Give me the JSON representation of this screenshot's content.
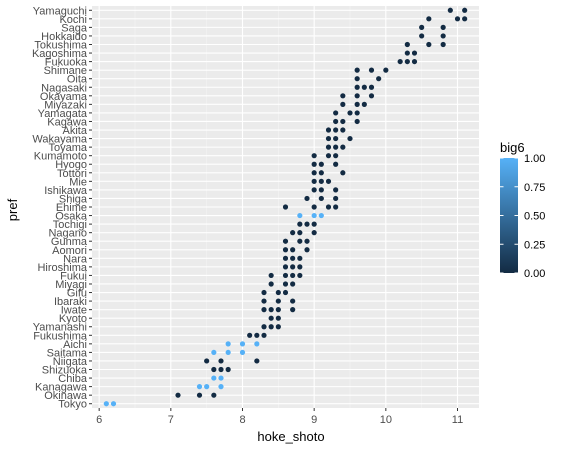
{
  "chart_data": {
    "type": "scatter",
    "xlabel": "hoke_shoto",
    "ylabel": "pref",
    "xlim": [
      5.9,
      11.3
    ],
    "xticks": [
      6,
      7,
      8,
      9,
      10,
      11
    ],
    "xtick_labels": [
      "6",
      "7",
      "8",
      "9",
      "10",
      "11"
    ],
    "grid": true,
    "legend": {
      "title": "big6",
      "position": "right",
      "ticks": [
        1.0,
        0.75,
        0.5,
        0.25,
        0.0
      ],
      "tick_labels": [
        "1.00",
        "0.75",
        "0.50",
        "0.25",
        "0.00"
      ],
      "low_color": "#132B43",
      "high_color": "#56B1F7"
    },
    "categories": [
      "Tokyo",
      "Okinawa",
      "Kanagawa",
      "Chiba",
      "Shizuoka",
      "Niigata",
      "Saitama",
      "Aichi",
      "Fukushima",
      "Yamanashi",
      "Kyoto",
      "Iwate",
      "Ibaraki",
      "Gifu",
      "Miyagi",
      "Fukui",
      "Hiroshima",
      "Nara",
      "Aomori",
      "Gunma",
      "Nagano",
      "Tochigi",
      "Osaka",
      "Ehime",
      "Shiga",
      "Ishikawa",
      "Mie",
      "Tottori",
      "Hyogo",
      "Kumamoto",
      "Toyama",
      "Wakayama",
      "Akita",
      "Kagawa",
      "Yamagata",
      "Miyazaki",
      "Okayama",
      "Nagasaki",
      "Oita",
      "Shimane",
      "Fukuoka",
      "Kagoshima",
      "Tokushima",
      "Hokkaido",
      "Saga",
      "Kochi",
      "Yamaguchi"
    ],
    "points": [
      {
        "pref": "Tokyo",
        "x": [
          6.1,
          6.2
        ],
        "big6": 1
      },
      {
        "pref": "Okinawa",
        "x": [
          7.1,
          7.4,
          7.6
        ],
        "big6": 0
      },
      {
        "pref": "Kanagawa",
        "x": [
          7.4,
          7.5,
          7.7
        ],
        "big6": 1
      },
      {
        "pref": "Chiba",
        "x": [
          7.6,
          7.7
        ],
        "big6": 1
      },
      {
        "pref": "Shizuoka",
        "x": [
          7.6,
          7.7,
          7.8
        ],
        "big6": 0
      },
      {
        "pref": "Niigata",
        "x": [
          7.5,
          7.7,
          8.2
        ],
        "big6": 0
      },
      {
        "pref": "Saitama",
        "x": [
          7.6,
          7.8,
          8.0
        ],
        "big6": 1
      },
      {
        "pref": "Aichi",
        "x": [
          7.8,
          8.0,
          8.2
        ],
        "big6": 1
      },
      {
        "pref": "Fukushima",
        "x": [
          8.1,
          8.2,
          8.3
        ],
        "big6": 0
      },
      {
        "pref": "Yamanashi",
        "x": [
          8.3,
          8.4,
          8.5
        ],
        "big6": 0
      },
      {
        "pref": "Kyoto",
        "x": [
          8.4,
          8.5
        ],
        "big6": 0
      },
      {
        "pref": "Iwate",
        "x": [
          8.3,
          8.4,
          8.5,
          8.7
        ],
        "big6": 0
      },
      {
        "pref": "Ibaraki",
        "x": [
          8.3,
          8.5,
          8.7
        ],
        "big6": 0
      },
      {
        "pref": "Gifu",
        "x": [
          8.3,
          8.5,
          8.6
        ],
        "big6": 0
      },
      {
        "pref": "Miyagi",
        "x": [
          8.4,
          8.6,
          8.7
        ],
        "big6": 0
      },
      {
        "pref": "Fukui",
        "x": [
          8.4,
          8.6,
          8.7,
          8.8
        ],
        "big6": 0
      },
      {
        "pref": "Hiroshima",
        "x": [
          8.6,
          8.7,
          8.8
        ],
        "big6": 0
      },
      {
        "pref": "Nara",
        "x": [
          8.6,
          8.7,
          8.8
        ],
        "big6": 0
      },
      {
        "pref": "Aomori",
        "x": [
          8.6,
          8.7,
          8.9
        ],
        "big6": 0
      },
      {
        "pref": "Gunma",
        "x": [
          8.6,
          8.8,
          8.9
        ],
        "big6": 0
      },
      {
        "pref": "Nagano",
        "x": [
          8.7,
          8.8,
          9.0
        ],
        "big6": 0
      },
      {
        "pref": "Tochigi",
        "x": [
          8.8,
          8.9,
          9.0
        ],
        "big6": 0
      },
      {
        "pref": "Osaka",
        "x": [
          8.8,
          9.0,
          9.1
        ],
        "big6": 1
      },
      {
        "pref": "Ehime",
        "x": [
          8.6,
          9.0,
          9.2,
          9.3
        ],
        "big6": 0
      },
      {
        "pref": "Shiga",
        "x": [
          8.9,
          9.1,
          9.3
        ],
        "big6": 0
      },
      {
        "pref": "Ishikawa",
        "x": [
          9.0,
          9.1,
          9.3
        ],
        "big6": 0
      },
      {
        "pref": "Mie",
        "x": [
          9.0,
          9.1,
          9.2
        ],
        "big6": 0
      },
      {
        "pref": "Tottori",
        "x": [
          9.0,
          9.1,
          9.4
        ],
        "big6": 0
      },
      {
        "pref": "Hyogo",
        "x": [
          9.0,
          9.1,
          9.3
        ],
        "big6": 0
      },
      {
        "pref": "Kumamoto",
        "x": [
          9.0,
          9.2,
          9.3
        ],
        "big6": 0
      },
      {
        "pref": "Toyama",
        "x": [
          9.2,
          9.3,
          9.4
        ],
        "big6": 0
      },
      {
        "pref": "Wakayama",
        "x": [
          9.2,
          9.3,
          9.5
        ],
        "big6": 0
      },
      {
        "pref": "Akita",
        "x": [
          9.2,
          9.3,
          9.4
        ],
        "big6": 0
      },
      {
        "pref": "Kagawa",
        "x": [
          9.3,
          9.4,
          9.6
        ],
        "big6": 0
      },
      {
        "pref": "Yamagata",
        "x": [
          9.3,
          9.5,
          9.6
        ],
        "big6": 0
      },
      {
        "pref": "Miyazaki",
        "x": [
          9.4,
          9.6,
          9.7
        ],
        "big6": 0
      },
      {
        "pref": "Okayama",
        "x": [
          9.4,
          9.6,
          9.8
        ],
        "big6": 0
      },
      {
        "pref": "Nagasaki",
        "x": [
          9.6,
          9.7,
          9.8
        ],
        "big6": 0
      },
      {
        "pref": "Oita",
        "x": [
          9.6,
          9.9
        ],
        "big6": 0
      },
      {
        "pref": "Shimane",
        "x": [
          9.6,
          9.8,
          10.0
        ],
        "big6": 0
      },
      {
        "pref": "Fukuoka",
        "x": [
          10.2,
          10.3,
          10.4
        ],
        "big6": 0
      },
      {
        "pref": "Kagoshima",
        "x": [
          10.3,
          10.4
        ],
        "big6": 0
      },
      {
        "pref": "Tokushima",
        "x": [
          10.3,
          10.6,
          10.8
        ],
        "big6": 0
      },
      {
        "pref": "Hokkaido",
        "x": [
          10.5,
          10.8
        ],
        "big6": 0
      },
      {
        "pref": "Saga",
        "x": [
          10.5,
          10.8
        ],
        "big6": 0
      },
      {
        "pref": "Kochi",
        "x": [
          10.6,
          11.0,
          11.1
        ],
        "big6": 0
      },
      {
        "pref": "Yamaguchi",
        "x": [
          10.9,
          11.1
        ],
        "big6": 0
      }
    ]
  }
}
